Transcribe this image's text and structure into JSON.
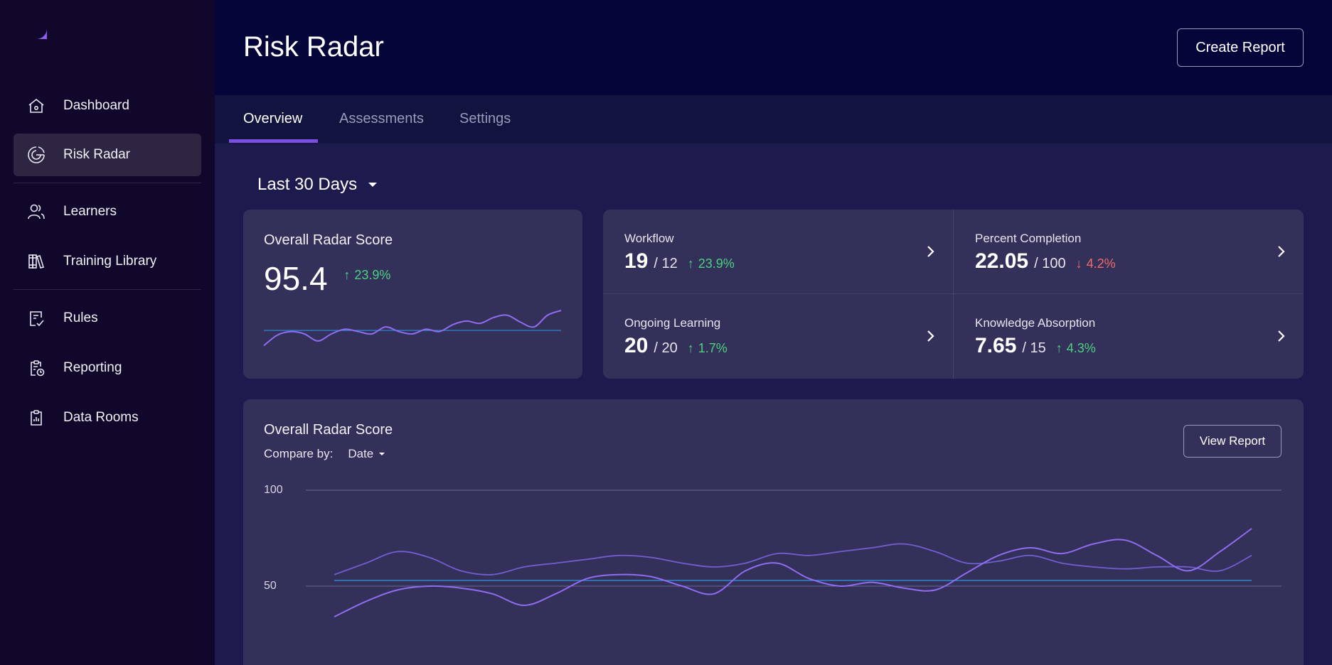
{
  "sidebar": {
    "items": [
      {
        "label": "Dashboard",
        "icon": "home-icon"
      },
      {
        "label": "Risk Radar",
        "icon": "radar-icon",
        "active": true
      },
      {
        "label": "Learners",
        "icon": "users-icon"
      },
      {
        "label": "Training Library",
        "icon": "library-icon"
      },
      {
        "label": "Rules",
        "icon": "rules-icon"
      },
      {
        "label": "Reporting",
        "icon": "reporting-icon"
      },
      {
        "label": "Data Rooms",
        "icon": "data-rooms-icon"
      }
    ]
  },
  "header": {
    "title": "Risk Radar",
    "create_label": "Create Report"
  },
  "tabs": [
    {
      "label": "Overview",
      "active": true
    },
    {
      "label": "Assessments"
    },
    {
      "label": "Settings"
    }
  ],
  "period": {
    "label": "Last 30 Days"
  },
  "score_card": {
    "title": "Overall Radar Score",
    "value": "95.4",
    "trend": "23.9%",
    "trend_direction": "up"
  },
  "metrics": [
    {
      "label": "Workflow",
      "value": "19",
      "of": "/ 12",
      "trend": "23.9%",
      "direction": "up"
    },
    {
      "label": "Percent Completion",
      "value": "22.05",
      "of": "/ 100",
      "trend": "4.2%",
      "direction": "down"
    },
    {
      "label": "Ongoing Learning",
      "value": "20",
      "of": "/ 20",
      "trend": "1.7%",
      "direction": "up"
    },
    {
      "label": "Knowledge Absorption",
      "value": "7.65",
      "of": "/ 15",
      "trend": "4.3%",
      "direction": "up"
    }
  ],
  "chart_card": {
    "title": "Overall Radar Score",
    "compare_label": "Compare by:",
    "compare_value": "Date",
    "view_label": "View Report"
  },
  "chart_data": {
    "type": "line",
    "ylim": [
      0,
      100
    ],
    "yticks": [
      100,
      50
    ],
    "x": [
      1,
      2,
      3,
      4,
      5,
      6,
      7,
      8,
      9,
      10,
      11,
      12,
      13,
      14,
      15,
      16,
      17,
      18,
      19,
      20,
      21,
      22,
      23,
      24,
      25,
      26,
      27,
      28,
      29,
      30
    ],
    "series": [
      {
        "values": [
          34,
          42,
          48,
          50,
          49,
          46,
          40,
          46,
          54,
          56,
          55,
          50,
          46,
          58,
          62,
          54,
          50,
          52,
          49,
          48,
          57,
          66,
          70,
          67,
          72,
          74,
          66,
          58,
          68,
          80
        ]
      },
      {
        "values": [
          56,
          62,
          68,
          65,
          58,
          56,
          60,
          62,
          64,
          66,
          65,
          62,
          60,
          62,
          67,
          66,
          68,
          70,
          72,
          68,
          62,
          63,
          66,
          62,
          60,
          59,
          60,
          60,
          58,
          66
        ]
      }
    ],
    "baseline": 53,
    "colors": {
      "primary": "#8f6cf0",
      "secondary": "#6f5fcf",
      "baseline": "#2e8fd8"
    }
  },
  "sparkline": {
    "values": [
      10,
      19,
      22,
      20,
      14,
      20,
      24,
      22,
      20,
      26,
      22,
      20,
      24,
      22,
      28,
      31,
      29,
      34,
      36,
      30,
      26,
      36,
      40
    ],
    "baseline": 23
  },
  "colors": {
    "accent": "#7a4ee0",
    "up": "#4fcf7e",
    "down": "#ef6b6b"
  }
}
